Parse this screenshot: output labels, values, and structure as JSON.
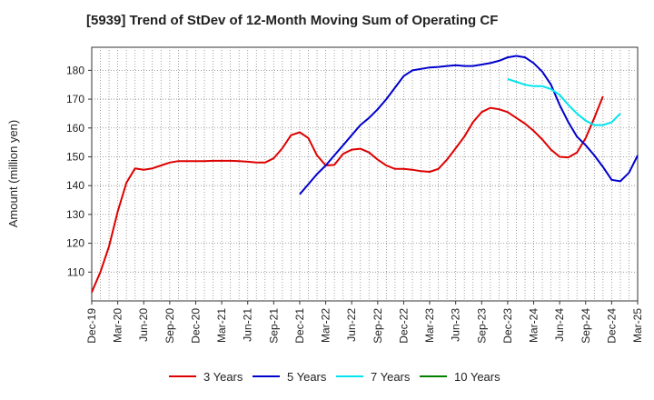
{
  "chart_data": {
    "type": "line",
    "title": "[5939]  Trend of StDev of 12-Month Moving Sum of Operating CF",
    "ylabel": "Amount (million yen)",
    "xlabel": "",
    "ylim": [
      100,
      188
    ],
    "y_ticks": [
      110,
      120,
      130,
      140,
      150,
      160,
      170,
      180
    ],
    "grid": true,
    "legend_position": "bottom",
    "x_tick_labels": [
      "Dec-19",
      "Mar-20",
      "Jun-20",
      "Sep-20",
      "Dec-20",
      "Mar-21",
      "Jun-21",
      "Sep-21",
      "Dec-21",
      "Mar-22",
      "Jun-22",
      "Sep-22",
      "Dec-22",
      "Mar-23",
      "Jun-23",
      "Sep-23",
      "Dec-23",
      "Mar-24",
      "Jun-24",
      "Sep-24",
      "Dec-24",
      "Mar-25"
    ],
    "x_start": "Dec-19",
    "series": [
      {
        "name": "3 Years",
        "color": "#dd0000",
        "start_month_index": 0,
        "values": [
          103,
          110,
          119,
          131,
          141,
          146,
          145.5,
          146,
          147,
          148,
          148.5,
          148.5,
          148.5,
          148.5,
          148.6,
          148.6,
          148.6,
          148.5,
          148.3,
          148,
          148,
          149.5,
          153,
          157.5,
          158.5,
          156.5,
          150.5,
          147,
          147.2,
          151,
          152.5,
          152.8,
          151.5,
          149,
          147,
          145.8,
          145.8,
          145.5,
          145,
          144.8,
          145.8,
          149,
          153,
          157,
          162,
          165.5,
          167,
          166.5,
          165.5,
          163.5,
          161.5,
          159,
          156,
          152.5,
          150,
          149.8,
          151.5,
          156.5,
          163.5,
          171
        ]
      },
      {
        "name": "5 Years",
        "color": "#0000cc",
        "start_month_index": 24,
        "values": [
          137,
          140.5,
          144,
          147,
          150.5,
          154,
          157.5,
          161,
          163.5,
          166.5,
          170,
          174,
          178,
          180,
          180.5,
          181,
          181.2,
          181.5,
          181.8,
          181.5,
          181.5,
          182,
          182.5,
          183.3,
          184.5,
          185,
          184.5,
          182.5,
          179.5,
          175,
          168,
          162,
          157,
          154,
          150.5,
          146.5,
          142,
          141.5,
          144.5,
          150.5
        ]
      },
      {
        "name": "7 Years",
        "color": "#00e5ee",
        "start_month_index": 48,
        "values": [
          177,
          176,
          175,
          174.5,
          174.5,
          173.5,
          171.5,
          168,
          165,
          162.5,
          161,
          161,
          162,
          165
        ]
      },
      {
        "name": "10 Years",
        "color": "#008000",
        "start_month_index": 0,
        "values": []
      }
    ]
  }
}
